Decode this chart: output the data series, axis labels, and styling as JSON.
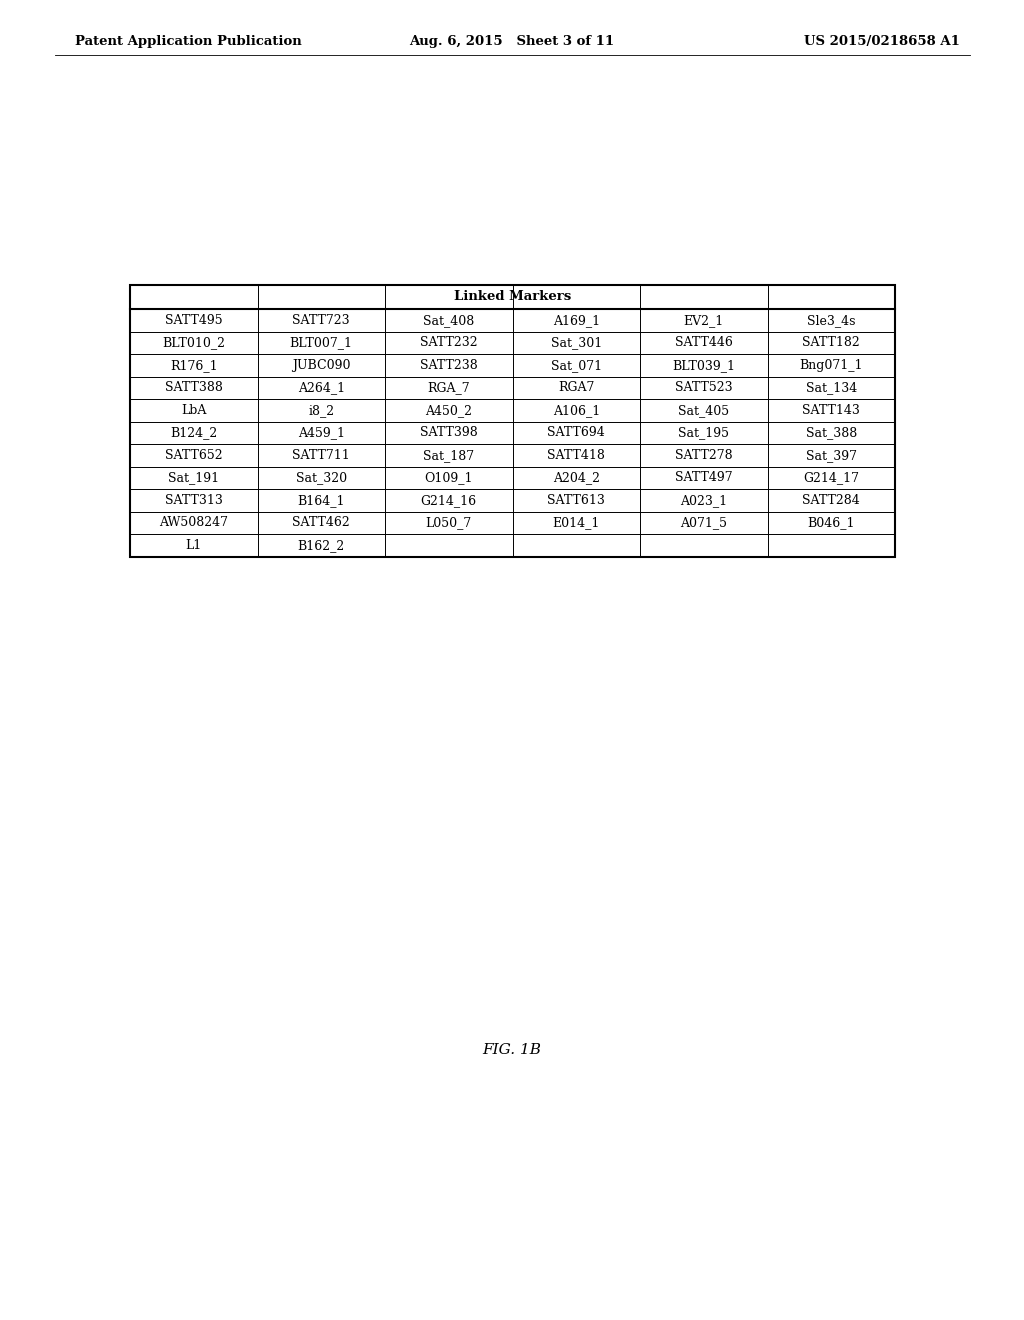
{
  "page_header_left": "Patent Application Publication",
  "page_header_center": "Aug. 6, 2015   Sheet 3 of 11",
  "page_header_right": "US 2015/0218658 A1",
  "table_title": "Linked Markers",
  "table_data": [
    [
      "SATT495",
      "SATT723",
      "Sat_408",
      "A169_1",
      "EV2_1",
      "Sle3_4s"
    ],
    [
      "BLT010_2",
      "BLT007_1",
      "SATT232",
      "Sat_301",
      "SATT446",
      "SATT182"
    ],
    [
      "R176_1",
      "JUBC090",
      "SATT238",
      "Sat_071",
      "BLT039_1",
      "Bng071_1"
    ],
    [
      "SATT388",
      "A264_1",
      "RGA_7",
      "RGA7",
      "SATT523",
      "Sat_134"
    ],
    [
      "LbA",
      "i8_2",
      "A450_2",
      "A106_1",
      "Sat_405",
      "SATT143"
    ],
    [
      "B124_2",
      "A459_1",
      "SATT398",
      "SATT694",
      "Sat_195",
      "Sat_388"
    ],
    [
      "SATT652",
      "SATT711",
      "Sat_187",
      "SATT418",
      "SATT278",
      "Sat_397"
    ],
    [
      "Sat_191",
      "Sat_320",
      "O109_1",
      "A204_2",
      "SATT497",
      "G214_17"
    ],
    [
      "SATT313",
      "B164_1",
      "G214_16",
      "SATT613",
      "A023_1",
      "SATT284"
    ],
    [
      "AW508247",
      "SATT462",
      "L050_7",
      "E014_1",
      "A071_5",
      "B046_1"
    ],
    [
      "L1",
      "B162_2",
      "",
      "",
      "",
      ""
    ]
  ],
  "figure_label": "FIG. 1B",
  "bg_color": "#ffffff",
  "text_color": "#000000",
  "header_fontsize": 9.5,
  "table_fontsize": 9.0,
  "fig_label_fontsize": 11
}
